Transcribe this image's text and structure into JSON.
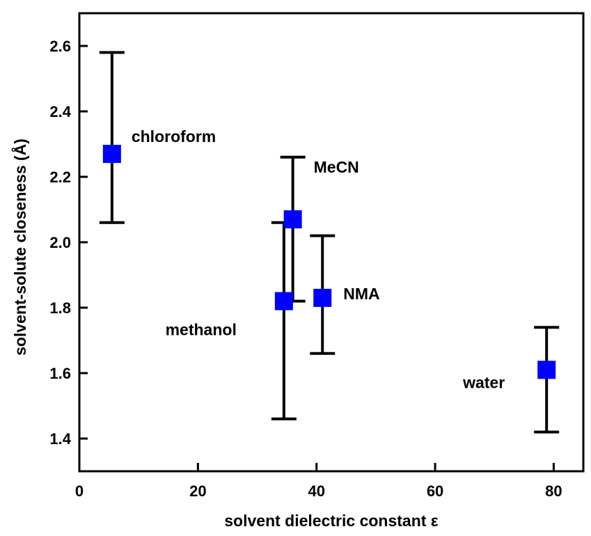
{
  "chart_data": {
    "type": "scatter",
    "xlabel": "solvent dielectric constant ε",
    "ylabel": "solvent-solute closeness (Å)",
    "xlim": [
      0,
      85
    ],
    "ylim": [
      1.3,
      2.7
    ],
    "x_ticks": [
      0,
      20,
      40,
      60,
      80
    ],
    "y_ticks": [
      1.4,
      1.6,
      1.8,
      2.0,
      2.2,
      2.4,
      2.6
    ],
    "x_tick_labels": [
      "0",
      "20",
      "40",
      "60",
      "80"
    ],
    "y_tick_labels": [
      "1.4",
      "1.6",
      "1.8",
      "2.0",
      "2.2",
      "2.4",
      "2.6"
    ],
    "grid": false,
    "marker": "square",
    "marker_color": "#0000ff",
    "points": [
      {
        "label": "chloroform",
        "x": 5.5,
        "y": 2.27,
        "err_low": 2.06,
        "err_high": 2.58
      },
      {
        "label": "MeCN",
        "x": 36.0,
        "y": 2.07,
        "err_low": 1.82,
        "err_high": 2.26
      },
      {
        "label": "methanol",
        "x": 34.5,
        "y": 1.82,
        "err_low": 1.46,
        "err_high": 2.06
      },
      {
        "label": "NMA",
        "x": 41.0,
        "y": 1.83,
        "err_low": 1.66,
        "err_high": 2.02
      },
      {
        "label": "water",
        "x": 78.8,
        "y": 1.61,
        "err_low": 1.42,
        "err_high": 1.74
      }
    ]
  }
}
